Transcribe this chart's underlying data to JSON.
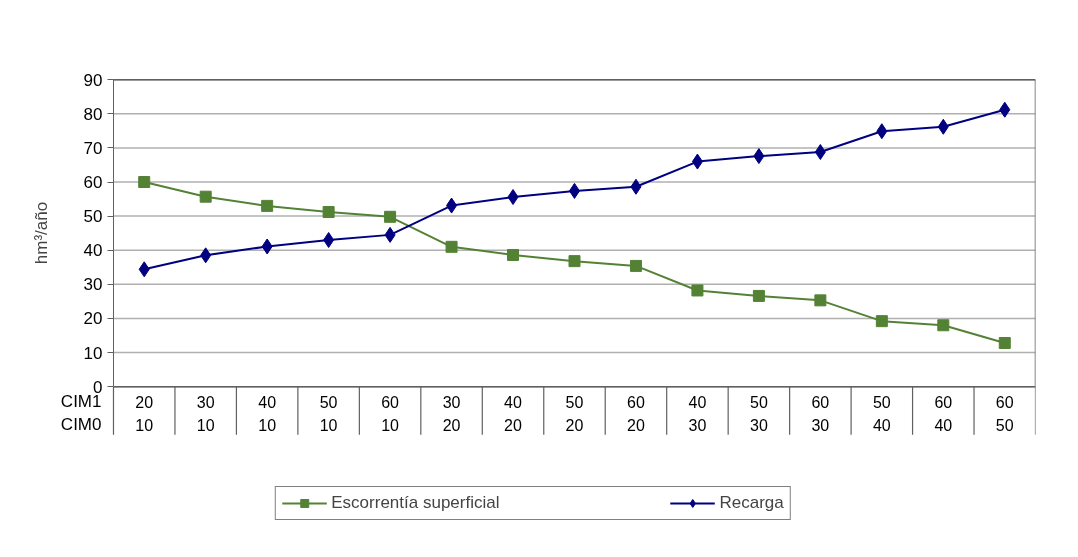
{
  "chart_data": {
    "type": "line",
    "ylabel": "hm³/año",
    "categories": [
      "20\n10",
      "30\n10",
      "40\n10",
      "50\n10",
      "60\n10",
      "30\n20",
      "40\n20",
      "50\n20",
      "60\n20",
      "40\n30",
      "50\n30",
      "60\n30",
      "50\n40",
      "60\n40",
      "60\n50"
    ],
    "annotations": [
      "CIM1",
      "CIM0"
    ],
    "series": [
      {
        "name": "Escorrentía superficial",
        "color": "#548235",
        "marker": "square",
        "values": [
          60,
          55.7,
          53,
          51.2,
          49.8,
          41,
          38.6,
          36.8,
          35.4,
          28.2,
          26.6,
          25.3,
          19.2,
          18,
          12.8
        ]
      },
      {
        "name": "Recarga",
        "color": "#000080",
        "marker": "diamond",
        "values": [
          34.4,
          38.5,
          41.1,
          43,
          44.5,
          53.1,
          55.6,
          57.4,
          58.6,
          66,
          67.6,
          68.8,
          74.9,
          76.2,
          81.2
        ]
      }
    ],
    "ylim": [
      0,
      90
    ],
    "yticks": [
      0,
      10,
      20,
      30,
      40,
      50,
      60,
      70,
      80,
      90
    ],
    "grid": "y",
    "legend": "bottom",
    "line_style": "solid"
  }
}
